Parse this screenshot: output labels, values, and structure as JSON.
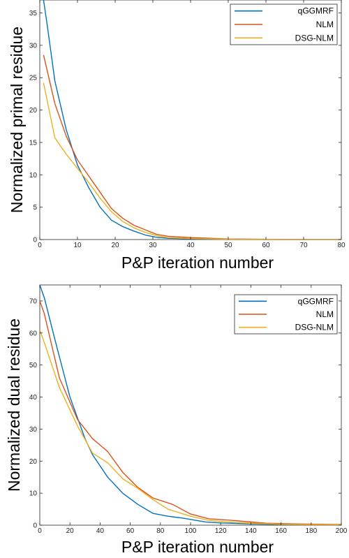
{
  "chart_data": [
    {
      "type": "line",
      "title": "",
      "xlabel": "P&P iteration number",
      "ylabel": "Normalized primal residue",
      "xlim": [
        0,
        80
      ],
      "ylim": [
        0,
        37
      ],
      "xticks": [
        0,
        10,
        20,
        30,
        40,
        50,
        60,
        70,
        80
      ],
      "yticks": [
        0,
        5,
        10,
        15,
        20,
        25,
        30,
        35
      ],
      "x_tick_labels": [
        "0",
        "10",
        "20",
        "30",
        "40",
        "50",
        "60",
        "70",
        "80"
      ],
      "y_tick_labels": [
        "0",
        "5",
        "10",
        "15",
        "20",
        "25",
        "30",
        "35"
      ],
      "grid": false,
      "legend_position": "top-right",
      "series": [
        {
          "name": "qGGMRF",
          "color": "#0072BD",
          "x": [
            1,
            2,
            4,
            7,
            10,
            13,
            16,
            19,
            22,
            25,
            28,
            31,
            34,
            40,
            50,
            60,
            70,
            80
          ],
          "y": [
            37,
            33,
            24.5,
            17,
            11.5,
            8,
            5,
            3,
            2,
            1.3,
            0.7,
            0.35,
            0.2,
            0.1,
            0.04,
            0.02,
            0.01,
            0.01
          ]
        },
        {
          "name": "NLM",
          "color": "#D95319",
          "x": [
            1,
            4,
            7,
            10,
            13,
            16,
            19,
            22,
            25,
            28,
            31,
            34,
            40,
            50,
            60,
            70,
            80
          ],
          "y": [
            28.5,
            21,
            16,
            12.3,
            9.8,
            7.3,
            4.8,
            3.3,
            2.2,
            1.5,
            0.8,
            0.5,
            0.3,
            0.1,
            0.05,
            0.02,
            0.01
          ]
        },
        {
          "name": "DSG-NLM",
          "color": "#EDB120",
          "x": [
            1,
            4,
            7,
            10,
            13,
            16,
            19,
            22,
            25,
            28,
            31,
            34,
            40,
            50,
            60,
            70,
            80
          ],
          "y": [
            24.2,
            15.7,
            13.2,
            11,
            8.8,
            6.4,
            4.3,
            2.8,
            1.8,
            1.1,
            0.6,
            0.3,
            0.15,
            0.06,
            0.03,
            0.01,
            0.01
          ]
        }
      ]
    },
    {
      "type": "line",
      "title": "",
      "xlabel": "P&P iteration number",
      "ylabel": "Normalized dual residue",
      "xlim": [
        0,
        200
      ],
      "ylim": [
        0,
        75
      ],
      "xticks": [
        0,
        20,
        40,
        60,
        80,
        100,
        120,
        140,
        160,
        180,
        200
      ],
      "yticks": [
        0,
        10,
        20,
        30,
        40,
        50,
        60,
        70
      ],
      "x_tick_labels": [
        "0",
        "20",
        "40",
        "60",
        "80",
        "100",
        "120",
        "140",
        "160",
        "180",
        "200"
      ],
      "y_tick_labels": [
        "0",
        "10",
        "20",
        "30",
        "40",
        "50",
        "60",
        "70"
      ],
      "grid": false,
      "legend_position": "top-right",
      "series": [
        {
          "name": "qGGMRF",
          "color": "#0072BD",
          "x": [
            0,
            3,
            10,
            20,
            30,
            35,
            45,
            55,
            65,
            75,
            85,
            95,
            110,
            120,
            140,
            160,
            180,
            200
          ],
          "y": [
            75,
            71,
            58,
            40,
            27,
            22,
            15,
            10,
            6.5,
            3.7,
            2.8,
            2.2,
            1,
            0.7,
            0.4,
            0.2,
            0.1,
            0.05
          ]
        },
        {
          "name": "NLM",
          "color": "#D95319",
          "x": [
            0,
            3,
            13,
            25,
            35,
            45,
            55,
            65,
            75,
            88,
            100,
            112,
            125,
            135,
            150,
            170,
            200
          ],
          "y": [
            70,
            66,
            46,
            33,
            27,
            23,
            16.5,
            11.8,
            8.5,
            6.5,
            3.5,
            2,
            1.6,
            1.2,
            0.6,
            0.4,
            0.2
          ]
        },
        {
          "name": "DSG-NLM",
          "color": "#EDB120",
          "x": [
            0,
            3,
            13,
            25,
            35,
            45,
            55,
            65,
            75,
            85,
            100,
            112,
            125,
            140,
            160,
            180,
            200
          ],
          "y": [
            61,
            57,
            43,
            31,
            22.5,
            19.5,
            14.5,
            11.5,
            8,
            5,
            2.8,
            1.5,
            1,
            0.6,
            0.3,
            0.15,
            0.1
          ]
        }
      ]
    }
  ]
}
